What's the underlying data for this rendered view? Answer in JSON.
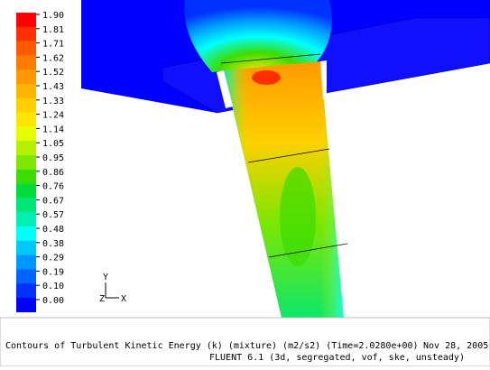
{
  "colorbar": {
    "levels": [
      {
        "label": "1.90",
        "color": "#ff0000"
      },
      {
        "label": "1.81",
        "color": "#ff2f00"
      },
      {
        "label": "1.71",
        "color": "#ff5a00"
      },
      {
        "label": "1.62",
        "color": "#ff7a00"
      },
      {
        "label": "1.52",
        "color": "#ff9900"
      },
      {
        "label": "1.43",
        "color": "#ffb400"
      },
      {
        "label": "1.33",
        "color": "#ffd000"
      },
      {
        "label": "1.24",
        "color": "#ffe600"
      },
      {
        "label": "1.14",
        "color": "#e6ff00"
      },
      {
        "label": "1.05",
        "color": "#b4f000"
      },
      {
        "label": "0.95",
        "color": "#7ee600"
      },
      {
        "label": "0.86",
        "color": "#3cdc00"
      },
      {
        "label": "0.76",
        "color": "#00dc3c"
      },
      {
        "label": "0.67",
        "color": "#00e678"
      },
      {
        "label": "0.57",
        "color": "#00f0b4"
      },
      {
        "label": "0.48",
        "color": "#00ffff"
      },
      {
        "label": "0.38",
        "color": "#00c8ff"
      },
      {
        "label": "0.29",
        "color": "#0096ff"
      },
      {
        "label": "0.19",
        "color": "#0064ff"
      },
      {
        "label": "0.10",
        "color": "#0032ff"
      },
      {
        "label": "0.00",
        "color": "#0000ff"
      }
    ]
  },
  "axes": {
    "y": "Y",
    "z": "Z",
    "x": "X"
  },
  "caption": {
    "line1": "Contours of Turbulent Kinetic Energy (k) (mixture)  (m2/s2)  (Time=2.0280e+00)",
    "date": "Nov 28, 2005",
    "line2": "FLUENT 6.1 (3d, segregated, vof, ske, unsteady)"
  }
}
